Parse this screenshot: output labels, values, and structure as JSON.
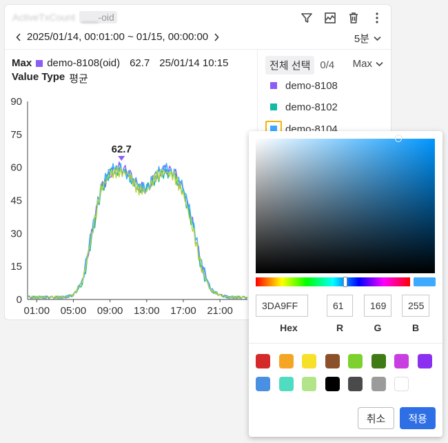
{
  "widget": {
    "title": "ActiveTxCount",
    "title_chip": "oid",
    "title_chip_blur": "___",
    "date_range": "2025/01/14, 00:01:00 ~ 01/15, 00:00:00",
    "interval": "5분",
    "toolbar_icons": [
      "filter-icon",
      "chart-icon",
      "trash-icon",
      "more-vertical-icon"
    ]
  },
  "stats": {
    "max_label": "Max",
    "max_series": "demo-8108(oid)",
    "max_value": "62.7",
    "max_time": "25/01/14 10:15",
    "value_type_label": "Value Type",
    "value_type": "평균"
  },
  "legend": {
    "select_all": "전체 선택",
    "count": "0/4",
    "mode": "Max",
    "items": [
      {
        "label": "demo-8108",
        "color": "#8b5cf6"
      },
      {
        "label": "demo-8102",
        "color": "#14b8a6"
      },
      {
        "label": "demo-8104",
        "color": "#3da9ff"
      }
    ]
  },
  "picker": {
    "hex": "3DA9FF",
    "r": "61",
    "g": "169",
    "b": "255",
    "hex_label": "Hex",
    "r_label": "R",
    "g_label": "G",
    "b_label": "B",
    "presets": [
      "#d42a2a",
      "#f5a524",
      "#f7e02a",
      "#8b5029",
      "#7ed02e",
      "#3f7a15",
      "#c93ee0",
      "#8b2ff0",
      "#4a90e2",
      "#4fdcc0",
      "#b2e58a",
      "#000000",
      "#4a4a4a",
      "#9b9b9b",
      "#ffffff"
    ],
    "cancel": "취소",
    "apply": "적용"
  },
  "chart_data": {
    "type": "line",
    "ylim": [
      0,
      90
    ],
    "yticks": [
      "0",
      "15",
      "30",
      "45",
      "60",
      "75",
      "90"
    ],
    "xticks": [
      "01:00",
      "05:00",
      "09:00",
      "13:00",
      "17:00",
      "21:00"
    ],
    "xlim": [
      0,
      24
    ],
    "peak_label": "62.7",
    "peak": {
      "x": 10.25,
      "y": 62.7
    },
    "x": [
      0,
      1,
      2,
      3,
      4,
      5,
      6,
      7,
      8,
      9,
      10,
      11,
      12,
      13,
      14,
      15,
      16,
      17,
      18,
      19,
      20,
      21,
      22,
      23,
      24
    ],
    "series": [
      {
        "color": "#8b5cf6",
        "values": [
          1,
          1,
          1,
          1,
          1,
          2,
          8,
          30,
          50,
          57,
          60,
          58,
          52,
          50,
          56,
          59,
          58,
          50,
          35,
          15,
          4,
          2,
          1,
          1,
          1
        ]
      },
      {
        "color": "#14b8a6",
        "values": [
          1,
          1,
          1,
          1,
          1,
          2,
          7,
          28,
          49,
          58,
          59,
          57,
          51,
          51,
          55,
          58,
          57,
          49,
          34,
          14,
          4,
          2,
          1,
          1,
          1
        ]
      },
      {
        "color": "#3da9ff",
        "values": [
          1,
          1,
          1,
          1,
          1,
          2,
          9,
          31,
          51,
          59,
          60,
          56,
          52,
          50,
          57,
          60,
          57,
          51,
          36,
          16,
          5,
          2,
          1,
          1,
          1
        ]
      },
      {
        "color": "#b5d334",
        "values": [
          1,
          1,
          1,
          1,
          1,
          2,
          8,
          29,
          50,
          57,
          58,
          57,
          50,
          49,
          56,
          58,
          56,
          48,
          33,
          14,
          4,
          2,
          1,
          1,
          1
        ]
      }
    ]
  }
}
